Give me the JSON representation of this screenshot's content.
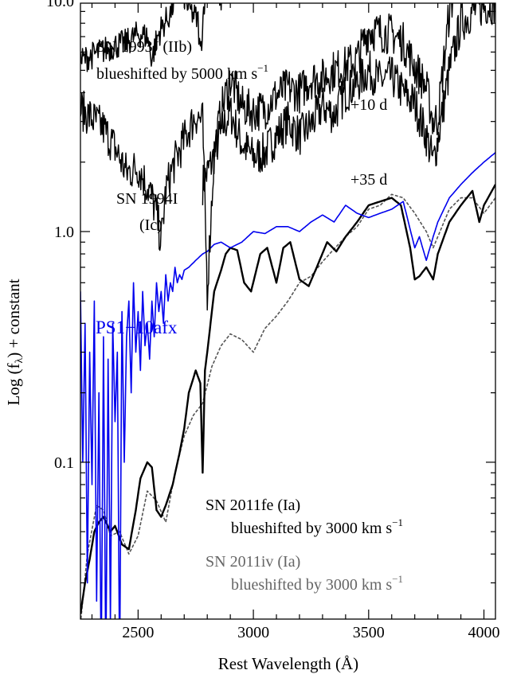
{
  "chart_data": {
    "type": "line",
    "title": "",
    "xlabel": "Rest Wavelength (Å)",
    "ylabel": "Log (f",
    "ylabel_sub": "λ",
    "ylabel_suffix": ")  + constant",
    "xlim": [
      2250,
      4050
    ],
    "ylim_log10": [
      -1.68,
      0.99
    ],
    "y_scale": "log",
    "grid": false,
    "x_ticks": [
      {
        "value": 2500,
        "label": "2500"
      },
      {
        "value": 3000,
        "label": "3000"
      },
      {
        "value": 3500,
        "label": "3500"
      },
      {
        "value": 4000,
        "label": "4000"
      }
    ],
    "y_ticks": [
      {
        "value": 10.0,
        "label": "10.0"
      },
      {
        "value": 1.0,
        "label": "1.0"
      },
      {
        "value": 0.1,
        "label": "0.1"
      }
    ],
    "annotations": {
      "sn1993j_name": "SN 1993J (IIb)",
      "sn1993j_shift": "blueshifted by 5000 km s",
      "sn1993j_shift_exp": "−1",
      "epoch_10": "+10 d",
      "epoch_35": "+35 d",
      "sn1994i_name": "SN 1994I",
      "sn1994i_type": "(Ic)",
      "ps1": "PS1−10afx",
      "sn2011fe_name": "SN 2011fe (Ia)",
      "sn2011fe_shift": "blueshifted by 3000 km s",
      "sn2011fe_shift_exp": "−1",
      "sn2011iv_name": "SN 2011iv (Ia)",
      "sn2011iv_shift": "blueshifted by 3000 km s",
      "sn2011iv_shift_exp": "−1"
    },
    "colors": {
      "ps1": "#0000ee",
      "sn1993j": "#000000",
      "sn1994i": "#000000",
      "sn2011fe": "#000000",
      "sn2011iv": "#555555"
    },
    "series": [
      {
        "key": "sn1993j",
        "name": "SN 1993J (IIb)",
        "noise": 0.06,
        "x": [
          2250,
          2300,
          2350,
          2400,
          2450,
          2500,
          2540,
          2560,
          2580,
          2600,
          2640,
          2680,
          2720,
          2760,
          2770,
          2790,
          2820,
          2860,
          2900,
          2950,
          3000,
          3050,
          3100,
          3150,
          3200,
          3250,
          3300,
          3350,
          3400,
          3450,
          3500,
          3530,
          3560,
          3600,
          3650,
          3700,
          3750,
          3780,
          3800,
          3850,
          3900,
          3950,
          4000,
          4050
        ],
        "y": [
          5.5,
          5.8,
          6.1,
          6.4,
          6.6,
          7.2,
          7.0,
          5.6,
          6.8,
          7.6,
          8.8,
          12.0,
          9.2,
          8.2,
          5.8,
          11.0,
          12.8,
          10.2,
          14.2,
          12.2,
          13.2,
          12.3,
          14.0,
          16.6,
          14.2,
          16.2,
          18.6,
          17.5,
          20.2,
          24.0,
          24.0,
          31.0,
          29.0,
          33.0,
          30.0,
          26.0,
          25.0,
          22.0,
          27.0,
          37.0,
          36.0,
          38.0,
          37.0,
          39.0
        ]
      },
      {
        "key": "sn1994i_10",
        "name": "SN 1994I +10 d",
        "noise": 0.09,
        "x": [
          2250,
          2300,
          2350,
          2400,
          2450,
          2500,
          2550,
          2580,
          2600,
          2620,
          2650,
          2700,
          2750,
          2780,
          2800,
          2830,
          2860,
          2900,
          2950,
          3000,
          3050,
          3100,
          3150,
          3200,
          3250,
          3300,
          3350,
          3400,
          3450,
          3500,
          3550,
          3600,
          3650,
          3700,
          3750,
          3780,
          3800,
          3850,
          3900,
          3950,
          4000,
          4050
        ],
        "y": [
          3.4,
          3.1,
          2.8,
          2.3,
          1.8,
          1.9,
          1.5,
          1.2,
          0.9,
          1.5,
          1.9,
          2.5,
          3.2,
          3.0,
          0.55,
          2.2,
          3.3,
          4.6,
          3.5,
          3.3,
          3.4,
          3.9,
          4.2,
          4.0,
          4.6,
          4.6,
          5.0,
          5.2,
          5.6,
          7.5,
          7.3,
          7.2,
          6.6,
          5.2,
          4.2,
          3.0,
          3.1,
          9.0,
          14.0,
          17.5,
          22.0,
          25.0
        ]
      },
      {
        "key": "sn1994i_35",
        "name": "SN 1994I +35 d",
        "noise": 0.09,
        "x": [
          2780,
          2800,
          2820,
          2860,
          2900,
          2950,
          3000,
          3050,
          3100,
          3150,
          3200,
          3250,
          3300,
          3350,
          3400,
          3450,
          3500,
          3550,
          3600,
          3650,
          3700,
          3750,
          3780,
          3800,
          3850,
          3900,
          3950,
          4000,
          4050
        ],
        "y": [
          1.6,
          1.8,
          2.0,
          2.7,
          3.3,
          2.4,
          2.1,
          2.2,
          2.6,
          3.0,
          2.6,
          2.9,
          3.5,
          3.2,
          4.0,
          4.4,
          5.0,
          4.5,
          4.7,
          4.0,
          3.6,
          2.6,
          2.0,
          2.5,
          5.0,
          8.0,
          9.0,
          9.5,
          9.8
        ]
      },
      {
        "key": "ps1",
        "name": "PS1−10afx",
        "noise": 0.0,
        "x": [
          2250,
          2260,
          2270,
          2280,
          2290,
          2300,
          2310,
          2320,
          2330,
          2340,
          2350,
          2360,
          2370,
          2380,
          2390,
          2400,
          2410,
          2420,
          2430,
          2440,
          2450,
          2460,
          2470,
          2480,
          2490,
          2500,
          2510,
          2520,
          2530,
          2540,
          2550,
          2560,
          2570,
          2580,
          2590,
          2600,
          2610,
          2620,
          2630,
          2640,
          2650,
          2660,
          2670,
          2680,
          2690,
          2700,
          2720,
          2750,
          2780,
          2800,
          2830,
          2860,
          2900,
          2950,
          3000,
          3050,
          3100,
          3150,
          3200,
          3250,
          3300,
          3350,
          3400,
          3450,
          3500,
          3550,
          3600,
          3650,
          3700,
          3720,
          3750,
          3780,
          3800,
          3850,
          3900,
          3950,
          4000,
          4050
        ],
        "y": [
          0.55,
          0.1,
          0.4,
          0.03,
          0.3,
          0.08,
          0.5,
          0.025,
          0.2,
          0.012,
          0.35,
          0.012,
          0.28,
          0.02,
          0.4,
          0.15,
          0.3,
          0.012,
          0.45,
          0.1,
          0.35,
          0.5,
          0.2,
          0.6,
          0.3,
          0.45,
          0.25,
          0.55,
          0.32,
          0.4,
          0.28,
          0.5,
          0.35,
          0.6,
          0.45,
          0.55,
          0.4,
          0.65,
          0.5,
          0.6,
          0.55,
          0.7,
          0.6,
          0.65,
          0.62,
          0.68,
          0.7,
          0.75,
          0.8,
          0.82,
          0.88,
          0.9,
          0.85,
          0.9,
          1.0,
          0.98,
          1.05,
          1.05,
          1.0,
          1.1,
          1.18,
          1.1,
          1.3,
          1.2,
          1.15,
          1.2,
          1.25,
          1.35,
          0.85,
          0.95,
          0.75,
          0.95,
          1.1,
          1.4,
          1.6,
          1.8,
          2.0,
          2.2
        ]
      },
      {
        "key": "sn2011fe",
        "name": "SN 2011fe (Ia)",
        "noise": 0.0,
        "x": [
          2250,
          2270,
          2290,
          2310,
          2330,
          2350,
          2380,
          2400,
          2430,
          2460,
          2490,
          2510,
          2540,
          2560,
          2580,
          2600,
          2620,
          2650,
          2680,
          2700,
          2720,
          2750,
          2770,
          2780,
          2790,
          2800,
          2830,
          2860,
          2880,
          2900,
          2930,
          2960,
          2990,
          3030,
          3060,
          3100,
          3130,
          3160,
          3200,
          3240,
          3280,
          3320,
          3360,
          3400,
          3450,
          3500,
          3550,
          3600,
          3640,
          3680,
          3700,
          3720,
          3750,
          3780,
          3800,
          3850,
          3900,
          3950,
          3980,
          4000,
          4050
        ],
        "y": [
          0.022,
          0.03,
          0.038,
          0.05,
          0.055,
          0.058,
          0.05,
          0.053,
          0.044,
          0.042,
          0.062,
          0.085,
          0.1,
          0.095,
          0.062,
          0.058,
          0.065,
          0.08,
          0.11,
          0.14,
          0.2,
          0.25,
          0.22,
          0.09,
          0.25,
          0.3,
          0.55,
          0.68,
          0.8,
          0.85,
          0.83,
          0.6,
          0.55,
          0.8,
          0.85,
          0.6,
          0.85,
          0.9,
          0.62,
          0.58,
          0.72,
          0.9,
          0.82,
          0.95,
          1.1,
          1.3,
          1.35,
          1.4,
          1.3,
          0.85,
          0.62,
          0.64,
          0.7,
          0.62,
          0.8,
          1.1,
          1.3,
          1.5,
          1.1,
          1.3,
          1.6
        ]
      },
      {
        "key": "sn2011iv",
        "name": "SN 2011iv (Ia)",
        "noise": 0.0,
        "x": [
          2250,
          2280,
          2320,
          2350,
          2380,
          2420,
          2460,
          2500,
          2540,
          2580,
          2620,
          2660,
          2700,
          2740,
          2780,
          2820,
          2860,
          2900,
          2950,
          3000,
          3050,
          3100,
          3150,
          3200,
          3250,
          3300,
          3350,
          3400,
          3450,
          3500,
          3550,
          3600,
          3650,
          3700,
          3750,
          3780,
          3800,
          3850,
          3900,
          3950,
          4000,
          4050
        ],
        "y": [
          0.02,
          0.04,
          0.065,
          0.062,
          0.048,
          0.05,
          0.04,
          0.048,
          0.075,
          0.068,
          0.055,
          0.09,
          0.13,
          0.16,
          0.18,
          0.26,
          0.32,
          0.36,
          0.34,
          0.3,
          0.38,
          0.43,
          0.5,
          0.6,
          0.64,
          0.74,
          0.84,
          0.95,
          1.05,
          1.25,
          1.3,
          1.45,
          1.4,
          1.2,
          1.0,
          0.85,
          0.95,
          1.25,
          1.4,
          1.4,
          1.2,
          1.4
        ]
      }
    ]
  }
}
